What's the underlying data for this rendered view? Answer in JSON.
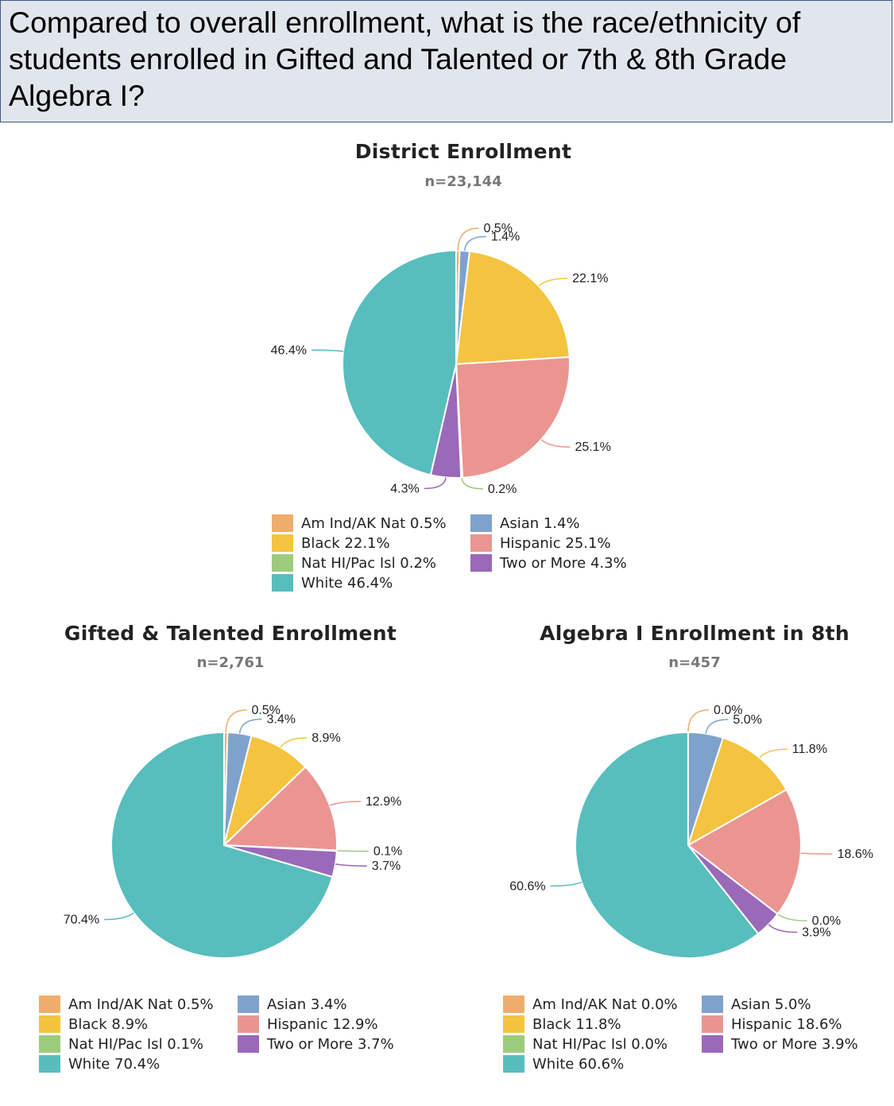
{
  "question": {
    "text": "Compared to overall enrollment, what is the race/ethnicity of students enrolled in Gifted and Talented or 7th & 8th Grade Algebra I?"
  },
  "categories": [
    "Am Ind/AK Nat",
    "Asian",
    "Black",
    "Hispanic",
    "Nat HI/Pac Isl",
    "Two or More",
    "White"
  ],
  "colors": {
    "Am Ind/AK Nat": "#efad6c",
    "Asian": "#7fa2cc",
    "Black": "#f4c340",
    "Hispanic": "#eb9591",
    "Nat HI/Pac Isl": "#9dcb7c",
    "Two or More": "#9a69b9",
    "White": "#57bebd"
  },
  "chart_data": [
    {
      "type": "pie",
      "title": "District Enrollment",
      "subtitle": "n=23,144",
      "categories": [
        "Am Ind/AK Nat",
        "Asian",
        "Black",
        "Hispanic",
        "Nat HI/Pac Isl",
        "Two or More",
        "White"
      ],
      "values": [
        0.5,
        1.4,
        22.1,
        25.1,
        0.2,
        4.3,
        46.4
      ],
      "labels": [
        "0.5%",
        "1.4%",
        "22.1%",
        "25.1%",
        "0.2%",
        "4.3%",
        "46.4%"
      ],
      "legend": [
        "Am Ind/AK Nat 0.5%",
        "Asian 1.4%",
        "Black 22.1%",
        "Hispanic 25.1%",
        "Nat HI/Pac Isl 0.2%",
        "Two or More 4.3%",
        "White 46.4%"
      ],
      "legend_position": "bottom"
    },
    {
      "type": "pie",
      "title": "Gifted & Talented Enrollment",
      "subtitle": "n=2,761",
      "categories": [
        "Am Ind/AK Nat",
        "Asian",
        "Black",
        "Hispanic",
        "Nat HI/Pac Isl",
        "Two or More",
        "White"
      ],
      "values": [
        0.5,
        3.4,
        8.9,
        12.9,
        0.1,
        3.7,
        70.4
      ],
      "labels": [
        "0.5%",
        "3.4%",
        "8.9%",
        "12.9%",
        "0.1%",
        "3.7%",
        "70.4%"
      ],
      "legend": [
        "Am Ind/AK Nat 0.5%",
        "Asian 3.4%",
        "Black 8.9%",
        "Hispanic 12.9%",
        "Nat HI/Pac Isl 0.1%",
        "Two or More 3.7%",
        "White 70.4%"
      ],
      "legend_position": "bottom"
    },
    {
      "type": "pie",
      "title": "Algebra I Enrollment in 8th",
      "subtitle": "n=457",
      "categories": [
        "Am Ind/AK Nat",
        "Asian",
        "Black",
        "Hispanic",
        "Nat HI/Pac Isl",
        "Two or More",
        "White"
      ],
      "values": [
        0.0,
        5.0,
        11.8,
        18.6,
        0.0,
        3.9,
        60.6
      ],
      "labels": [
        "0.0%",
        "5.0%",
        "11.8%",
        "18.6%",
        "0.0%",
        "3.9%",
        "60.6%"
      ],
      "legend": [
        "Am Ind/AK Nat 0.0%",
        "Asian 5.0%",
        "Black 11.8%",
        "Hispanic 18.6%",
        "Nat HI/Pac Isl 0.0%",
        "Two or More 3.9%",
        "White 60.6%"
      ],
      "legend_position": "bottom"
    }
  ]
}
